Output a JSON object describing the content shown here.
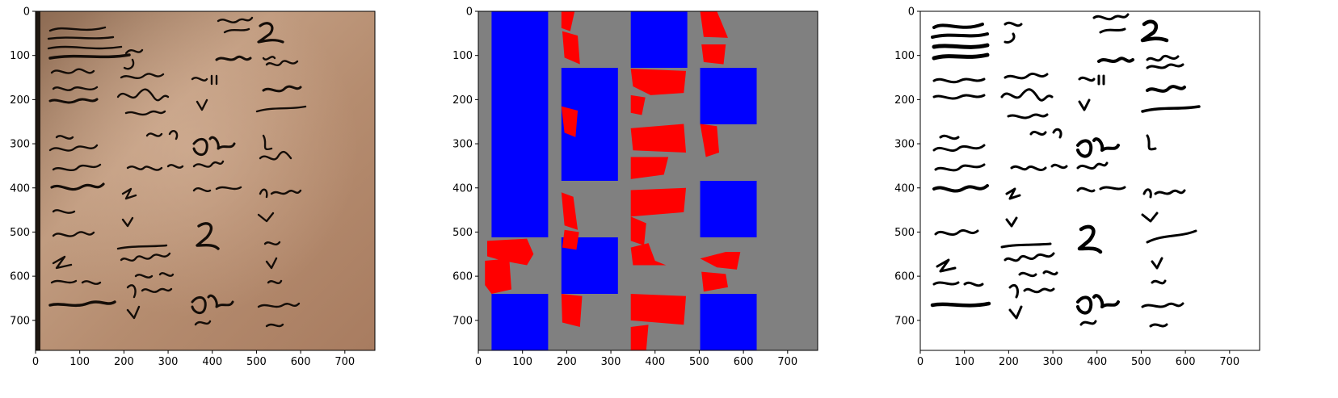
{
  "figure": {
    "panels": [
      {
        "id": "photo",
        "content": "document-photo"
      },
      {
        "id": "mask",
        "content": "segmentation-mask"
      },
      {
        "id": "binary",
        "content": "binarized-text"
      }
    ]
  },
  "axes": {
    "xlim": [
      0,
      768
    ],
    "ylim": [
      768,
      0
    ],
    "x_ticks": [
      0,
      100,
      200,
      300,
      400,
      500,
      600,
      700
    ],
    "y_ticks": [
      0,
      100,
      200,
      300,
      400,
      500,
      600,
      700
    ],
    "x_tick_labels": [
      "0",
      "100",
      "200",
      "300",
      "400",
      "500",
      "600",
      "700"
    ],
    "y_tick_labels": [
      "0",
      "100",
      "200",
      "300",
      "400",
      "500",
      "600",
      "700"
    ]
  },
  "mask": {
    "background": "#808080",
    "blue": "#0000ff",
    "red": "#ff0000",
    "blue_rects": [
      [
        30,
        0,
        158,
        512
      ],
      [
        30,
        640,
        158,
        768
      ],
      [
        188,
        128,
        316,
        384
      ],
      [
        188,
        512,
        316,
        640
      ],
      [
        345,
        0,
        473,
        128
      ],
      [
        502,
        128,
        630,
        256
      ],
      [
        502,
        384,
        630,
        512
      ],
      [
        502,
        640,
        630,
        768
      ]
    ],
    "red_polys": [
      [
        [
          188,
          0
        ],
        [
          218,
          0
        ],
        [
          208,
          45
        ],
        [
          188,
          38
        ]
      ],
      [
        [
          190,
          45
        ],
        [
          225,
          55
        ],
        [
          230,
          120
        ],
        [
          195,
          105
        ]
      ],
      [
        [
          188,
          215
        ],
        [
          225,
          225
        ],
        [
          220,
          285
        ],
        [
          195,
          275
        ]
      ],
      [
        [
          188,
          410
        ],
        [
          215,
          420
        ],
        [
          225,
          495
        ],
        [
          195,
          485
        ]
      ],
      [
        [
          195,
          495
        ],
        [
          228,
          500
        ],
        [
          222,
          540
        ],
        [
          190,
          535
        ]
      ],
      [
        [
          188,
          640
        ],
        [
          235,
          645
        ],
        [
          230,
          715
        ],
        [
          190,
          705
        ]
      ],
      [
        [
          345,
          130
        ],
        [
          470,
          135
        ],
        [
          465,
          185
        ],
        [
          390,
          190
        ],
        [
          350,
          170
        ]
      ],
      [
        [
          345,
          190
        ],
        [
          378,
          195
        ],
        [
          370,
          235
        ],
        [
          345,
          230
        ]
      ],
      [
        [
          345,
          265
        ],
        [
          465,
          255
        ],
        [
          470,
          320
        ],
        [
          350,
          315
        ]
      ],
      [
        [
          345,
          330
        ],
        [
          430,
          330
        ],
        [
          420,
          370
        ],
        [
          345,
          380
        ]
      ],
      [
        [
          345,
          405
        ],
        [
          470,
          400
        ],
        [
          465,
          455
        ],
        [
          345,
          465
        ]
      ],
      [
        [
          345,
          465
        ],
        [
          380,
          480
        ],
        [
          375,
          530
        ],
        [
          345,
          520
        ]
      ],
      [
        [
          345,
          535
        ],
        [
          385,
          525
        ],
        [
          400,
          565
        ],
        [
          425,
          575
        ],
        [
          350,
          575
        ]
      ],
      [
        [
          345,
          640
        ],
        [
          470,
          645
        ],
        [
          465,
          710
        ],
        [
          345,
          700
        ]
      ],
      [
        [
          345,
          715
        ],
        [
          385,
          710
        ],
        [
          380,
          768
        ],
        [
          345,
          768
        ]
      ],
      [
        [
          502,
          0
        ],
        [
          540,
          0
        ],
        [
          565,
          60
        ],
        [
          510,
          58
        ]
      ],
      [
        [
          505,
          75
        ],
        [
          560,
          75
        ],
        [
          555,
          120
        ],
        [
          510,
          115
        ]
      ],
      [
        [
          502,
          255
        ],
        [
          540,
          260
        ],
        [
          545,
          320
        ],
        [
          515,
          330
        ]
      ],
      [
        [
          502,
          560
        ],
        [
          560,
          545
        ],
        [
          593,
          545
        ],
        [
          585,
          585
        ],
        [
          540,
          580
        ]
      ],
      [
        [
          505,
          590
        ],
        [
          560,
          595
        ],
        [
          565,
          625
        ],
        [
          510,
          635
        ]
      ],
      [
        [
          20,
          520
        ],
        [
          110,
          515
        ],
        [
          125,
          550
        ],
        [
          110,
          575
        ],
        [
          55,
          565
        ],
        [
          20,
          555
        ]
      ],
      [
        [
          15,
          565
        ],
        [
          70,
          560
        ],
        [
          75,
          630
        ],
        [
          30,
          640
        ],
        [
          15,
          620
        ]
      ]
    ]
  },
  "photo": {
    "tint": "#ad8466",
    "dark_edge": "#1f1812"
  }
}
